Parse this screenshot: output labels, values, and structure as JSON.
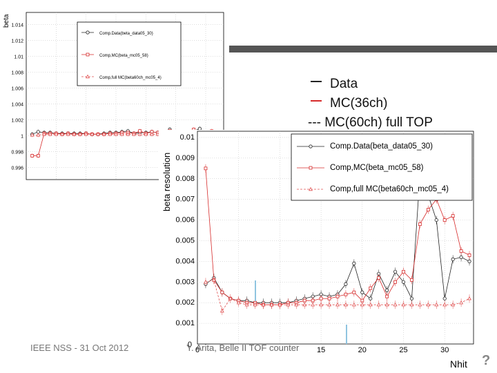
{
  "slide": {
    "legend_data": "Data",
    "legend_mc36": "MC(36ch)",
    "legend_mc60": "--- MC(60ch) full TOP",
    "footer_left": "IEEE NSS - 31 Oct 2012",
    "footer_mid": "Y. Arita, Belle II TOF counter",
    "page_glyph": "?"
  },
  "colors": {
    "data": "#222222",
    "mc": "#d62a2a",
    "mc_full": "#e05050",
    "accent_bar": "#555555",
    "arrow": "#8fc4e0"
  },
  "chart_data": [
    {
      "type": "line",
      "title": "",
      "ylabel": "beta",
      "xlabel": "",
      "xlim": [
        0,
        33
      ],
      "ylim": [
        0.9945,
        1.0155
      ],
      "yticks": [
        0.996,
        0.998,
        1,
        1.002,
        1.004,
        1.006,
        1.008,
        1.01,
        1.012,
        1.014
      ],
      "ytick_labels": [
        "0.996",
        "0.998",
        "1",
        "1.002",
        "1.004",
        "1.006",
        "1.008",
        "1.01",
        "1.012",
        "1.014"
      ],
      "legend": [
        "Comp.Data(beta_data05_30)",
        "Comp,MC(beta_mc05_58)",
        "Comp,full MC(beta60ch_mc05_4)"
      ],
      "x": [
        1,
        2,
        3,
        4,
        5,
        6,
        7,
        8,
        9,
        10,
        11,
        12,
        13,
        14,
        15,
        16,
        17,
        18,
        19,
        20,
        21,
        22,
        23,
        24,
        25,
        26,
        27,
        28,
        29,
        30,
        31,
        32
      ],
      "series": [
        {
          "name": "Comp.Data(beta_data05_30)",
          "values": [
            1.0002,
            1.0005,
            1.0004,
            1.0004,
            1.0003,
            1.0003,
            1.0003,
            1.0003,
            1.0003,
            1.0003,
            1.0002,
            1.0002,
            1.0003,
            1.0004,
            1.0004,
            1.0005,
            1.0006,
            1.0003,
            1.0004,
            1.0004,
            1.0005,
            1.0004,
            1.0003,
            1.0008,
            1.0004,
            1.0003,
            1.0003,
            1.0006,
            1.0009,
            1.0003,
            1.0001,
            1.0003
          ]
        },
        {
          "name": "Comp,MC(beta_mc05_58)",
          "values": [
            0.9975,
            0.9975,
            1.0003,
            1.0003,
            1.0003,
            1.0002,
            1.0003,
            1.0002,
            1.0002,
            1.0003,
            1.0002,
            1.0002,
            1.0002,
            1.0003,
            1.0003,
            1.0004,
            1.0004,
            1.0003,
            1.0006,
            1.0003,
            1.0005,
            1.0004,
            1.0003,
            1.0006,
            1.0004,
            1.0003,
            1.0003,
            1.0008,
            1.0005,
            1.0003,
            1.0006,
            1.0004
          ]
        },
        {
          "name": "Comp,full MC(beta60ch_mc05_4)",
          "values": [
            1.0001,
            1.0001,
            1.0002,
            1.0002,
            1.0002,
            1.0002,
            1.0002,
            1.0002,
            1.0002,
            1.0002,
            1.0002,
            1.0002,
            1.0002,
            1.0002,
            1.0002,
            1.0002,
            1.0002,
            1.0002,
            1.0002,
            1.0002,
            1.0002,
            1.0002,
            1.0002,
            1.0002,
            1.0002,
            1.0002,
            1.0002,
            1.0002,
            1.0002,
            1.0002,
            1.0002,
            1.0002
          ]
        }
      ]
    },
    {
      "type": "line",
      "title": "",
      "ylabel": "beta resolution",
      "xlabel": "Nhit",
      "xlim": [
        0,
        33.5
      ],
      "ylim": [
        0,
        0.0103
      ],
      "yticks": [
        0.001,
        0.002,
        0.003,
        0.004,
        0.005,
        0.006,
        0.007,
        0.008,
        0.009,
        0.01
      ],
      "ytick_labels": [
        "0.001",
        "0.002",
        "0.003",
        "0.004",
        "0.005",
        "0.006",
        "0.007",
        "0.008",
        "0.009",
        "0.01"
      ],
      "xticks": [
        0,
        15,
        20,
        25,
        30
      ],
      "xtick_labels": [
        "0",
        "15",
        "20",
        "25",
        "30"
      ],
      "y_axis_zero_label": "0",
      "legend": [
        "Comp.Data(beta_data05_30)",
        "Comp,MC(beta_mc05_58)",
        "Comp,full MC(beta60ch_mc05_4)"
      ],
      "x": [
        1,
        2,
        3,
        4,
        5,
        6,
        7,
        8,
        9,
        10,
        11,
        12,
        13,
        14,
        15,
        16,
        17,
        18,
        19,
        20,
        21,
        22,
        23,
        24,
        25,
        26,
        27,
        28,
        29,
        30,
        31,
        32,
        33
      ],
      "series": [
        {
          "name": "Comp.Data(beta_data05_30)",
          "values": [
            0.0029,
            0.0032,
            0.0025,
            0.0022,
            0.0021,
            0.0021,
            0.002,
            0.002,
            0.002,
            0.002,
            0.002,
            0.0021,
            0.0022,
            0.0023,
            0.0024,
            0.0023,
            0.0024,
            0.0029,
            0.0039,
            0.0025,
            0.0022,
            0.0034,
            0.0026,
            0.0035,
            0.003,
            0.0022,
            0.0082,
            0.0072,
            0.006,
            0.0022,
            0.0041,
            0.0042,
            0.004
          ]
        },
        {
          "name": "Comp,MC(beta_mc05_58)",
          "values": [
            0.0085,
            0.0031,
            0.0025,
            0.0022,
            0.0021,
            0.002,
            0.002,
            0.0019,
            0.0019,
            0.0019,
            0.002,
            0.002,
            0.0021,
            0.0021,
            0.0022,
            0.0022,
            0.0023,
            0.0024,
            0.0025,
            0.0021,
            0.0027,
            0.0032,
            0.0023,
            0.003,
            0.0035,
            0.0031,
            0.0058,
            0.0065,
            0.007,
            0.006,
            0.0062,
            0.0045,
            0.0043
          ]
        },
        {
          "name": "Comp,full MC(beta60ch_mc05_4)",
          "values": [
            0.003,
            0.0031,
            0.0016,
            0.0022,
            0.002,
            0.0019,
            0.0019,
            0.0019,
            0.0019,
            0.0019,
            0.0019,
            0.0019,
            0.0019,
            0.0019,
            0.0019,
            0.0019,
            0.0019,
            0.0019,
            0.0019,
            0.0019,
            0.0019,
            0.0019,
            0.0019,
            0.0019,
            0.0019,
            0.0019,
            0.0019,
            0.0019,
            0.0019,
            0.0019,
            0.0019,
            0.002,
            0.0022
          ]
        }
      ]
    }
  ]
}
